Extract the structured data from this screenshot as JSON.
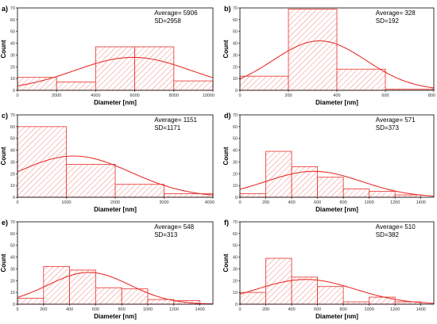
{
  "chart_data": [
    {
      "panel": "a)",
      "type": "bar",
      "xlabel": "Diameter [nm]",
      "ylabel": "Count",
      "xlim": [
        0,
        10000
      ],
      "ylim": [
        0,
        70
      ],
      "xticks": [
        0,
        2000,
        4000,
        6000,
        8000,
        10000
      ],
      "yticks": [
        0,
        10,
        20,
        30,
        40,
        50,
        60,
        70
      ],
      "bins": [
        [
          0,
          2000,
          11
        ],
        [
          2000,
          4000,
          7
        ],
        [
          4000,
          6000,
          37
        ],
        [
          6000,
          8000,
          37
        ],
        [
          8000,
          10000,
          8
        ]
      ],
      "fit": {
        "mean": 5906,
        "sd": 2958,
        "peak": 28
      },
      "stats": [
        "Average= 5906",
        "SD=2958"
      ]
    },
    {
      "panel": "b)",
      "type": "bar",
      "xlabel": "Diameter [nm]",
      "ylabel": "Count",
      "xlim": [
        0,
        800
      ],
      "ylim": [
        0,
        70
      ],
      "xticks": [
        0,
        200,
        400,
        600,
        800
      ],
      "yticks": [
        0,
        10,
        20,
        30,
        40,
        50,
        60,
        70
      ],
      "bins": [
        [
          0,
          200,
          12
        ],
        [
          200,
          400,
          69
        ],
        [
          400,
          600,
          18
        ],
        [
          600,
          800,
          1
        ]
      ],
      "fit": {
        "mean": 328,
        "sd": 192,
        "peak": 42
      },
      "stats": [
        "Average= 328",
        "SD=192"
      ]
    },
    {
      "panel": "c)",
      "type": "bar",
      "xlabel": "Diameter [nm]",
      "ylabel": "Count",
      "xlim": [
        0,
        4000
      ],
      "ylim": [
        0,
        70
      ],
      "xticks": [
        0,
        1000,
        2000,
        3000,
        4000
      ],
      "yticks": [
        0,
        10,
        20,
        30,
        40,
        50,
        60,
        70
      ],
      "bins": [
        [
          0,
          1000,
          60
        ],
        [
          1000,
          2000,
          28
        ],
        [
          2000,
          3000,
          11
        ],
        [
          3000,
          4000,
          3
        ]
      ],
      "fit": {
        "mean": 1151,
        "sd": 1171,
        "peak": 35
      },
      "stats": [
        "Average= 1151",
        "SD=1171"
      ]
    },
    {
      "panel": "d)",
      "type": "bar",
      "xlabel": "Diameter [nm]",
      "ylabel": "Count",
      "xlim": [
        0,
        1500
      ],
      "ylim": [
        0,
        70
      ],
      "xticks": [
        0,
        200,
        400,
        600,
        800,
        1000,
        1200,
        1400
      ],
      "yticks": [
        0,
        10,
        20,
        30,
        40,
        50,
        60,
        70
      ],
      "bins": [
        [
          0,
          200,
          3
        ],
        [
          200,
          400,
          39
        ],
        [
          400,
          600,
          26
        ],
        [
          600,
          800,
          17
        ],
        [
          800,
          1000,
          7
        ],
        [
          1000,
          1200,
          5
        ],
        [
          1200,
          1400,
          2
        ]
      ],
      "fit": {
        "mean": 571,
        "sd": 373,
        "peak": 22
      },
      "stats": [
        "Average= 571",
        "SD=373"
      ]
    },
    {
      "panel": "e)",
      "type": "bar",
      "xlabel": "Diameter [nm]",
      "ylabel": "Count",
      "xlim": [
        0,
        1500
      ],
      "ylim": [
        0,
        70
      ],
      "xticks": [
        0,
        200,
        400,
        600,
        800,
        1000,
        1200,
        1400
      ],
      "yticks": [
        0,
        10,
        20,
        30,
        40,
        50,
        60,
        70
      ],
      "bins": [
        [
          0,
          200,
          5
        ],
        [
          200,
          400,
          32
        ],
        [
          400,
          600,
          29
        ],
        [
          600,
          800,
          14
        ],
        [
          800,
          1000,
          13
        ],
        [
          1000,
          1200,
          4
        ],
        [
          1200,
          1400,
          3
        ]
      ],
      "fit": {
        "mean": 548,
        "sd": 313,
        "peak": 27
      },
      "stats": [
        "Average= 548",
        "SD=313"
      ]
    },
    {
      "panel": "f)",
      "type": "bar",
      "xlabel": "Diameter [nm]",
      "ylabel": "Count",
      "xlim": [
        0,
        1500
      ],
      "ylim": [
        0,
        70
      ],
      "xticks": [
        0,
        200,
        400,
        600,
        800,
        1000,
        1200,
        1400
      ],
      "yticks": [
        0,
        10,
        20,
        30,
        40,
        50,
        60,
        70
      ],
      "bins": [
        [
          0,
          200,
          10
        ],
        [
          200,
          400,
          39
        ],
        [
          400,
          600,
          23
        ],
        [
          600,
          800,
          15
        ],
        [
          800,
          1000,
          2
        ],
        [
          1000,
          1200,
          6
        ],
        [
          1200,
          1400,
          2
        ]
      ],
      "fit": {
        "mean": 510,
        "sd": 382,
        "peak": 21
      },
      "stats": [
        "Average= 510",
        "SD=382"
      ]
    }
  ],
  "colors": {
    "bar_edge": "#e8302a",
    "hatch": "#f07a74",
    "curve": "#e8302a",
    "axis": "#000000"
  }
}
